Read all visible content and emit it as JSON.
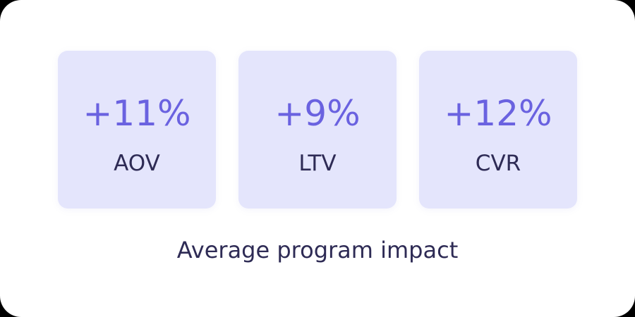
{
  "cards": [
    {
      "value": "+11%",
      "label": "AOV"
    },
    {
      "value": "+9%",
      "label": "LTV"
    },
    {
      "value": "+12%",
      "label": "CVR"
    }
  ],
  "caption": "Average program impact"
}
